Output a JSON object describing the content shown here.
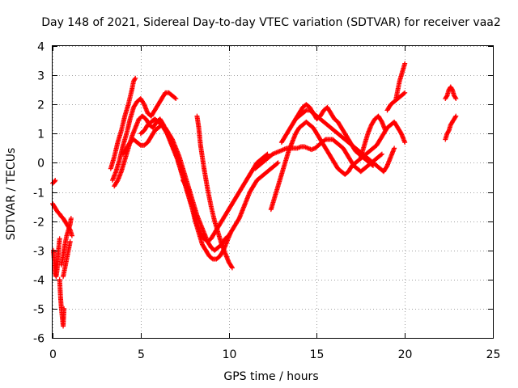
{
  "chart_data": {
    "type": "scatter",
    "title": "Day 148 of 2021, Sidereal Day-to-day VTEC variation (SDTVAR) for receiver vaa2",
    "xlabel": "GPS time / hours",
    "ylabel": "SDTVAR / TECUs",
    "xlim": [
      0,
      25
    ],
    "ylim": [
      -6,
      4
    ],
    "x_ticks": [
      0,
      5,
      10,
      15,
      20,
      25
    ],
    "x_tick_labels": [
      "0",
      "5",
      "10",
      "15",
      "20",
      "25"
    ],
    "y_ticks": [
      -6,
      -5,
      -4,
      -3,
      -2,
      -1,
      0,
      1,
      2,
      3,
      4
    ],
    "y_tick_labels": [
      "-6",
      "-5",
      "-4",
      "-3",
      "-2",
      "-1",
      "0",
      "1",
      "2",
      "3",
      "4"
    ],
    "grid": true,
    "marker": "plus",
    "color": "#ff0000",
    "series": [
      {
        "name": "s1",
        "x": [
          0.0,
          0.1,
          0.15
        ],
        "y": [
          -0.7,
          -0.65,
          -0.6
        ]
      },
      {
        "name": "s2",
        "x": [
          0.0,
          0.1,
          0.2,
          0.3,
          0.4,
          0.5,
          0.6,
          0.7,
          0.8,
          0.9,
          1.0,
          1.1
        ],
        "y": [
          -1.4,
          -1.5,
          -1.6,
          -1.7,
          -1.75,
          -1.85,
          -1.9,
          -2.0,
          -2.1,
          -2.2,
          -2.3,
          -2.5
        ]
      },
      {
        "name": "s3",
        "x": [
          0.05,
          0.1,
          0.15,
          0.2,
          0.25,
          0.3,
          0.35,
          0.4
        ],
        "y": [
          -3.0,
          -3.4,
          -3.8,
          -3.9,
          -3.7,
          -3.3,
          -2.9,
          -2.6
        ]
      },
      {
        "name": "s4",
        "x": [
          0.4,
          0.45,
          0.5,
          0.55,
          0.6,
          0.65
        ],
        "y": [
          -4.0,
          -4.6,
          -5.0,
          -5.3,
          -5.6,
          -5.0
        ]
      },
      {
        "name": "s5",
        "x": [
          0.5,
          0.6,
          0.7,
          0.8,
          0.9,
          1.0,
          1.05
        ],
        "y": [
          -3.5,
          -3.2,
          -2.8,
          -2.5,
          -2.3,
          -2.1,
          -1.9
        ]
      },
      {
        "name": "s6",
        "x": [
          0.6,
          0.7,
          0.8,
          0.9,
          1.0
        ],
        "y": [
          -3.9,
          -3.6,
          -3.3,
          -3.0,
          -2.7
        ]
      },
      {
        "name": "s7",
        "x": [
          3.3,
          3.5,
          3.7,
          3.9,
          4.1,
          4.3,
          4.5,
          4.6,
          4.7
        ],
        "y": [
          -0.2,
          0.2,
          0.7,
          1.1,
          1.6,
          2.0,
          2.5,
          2.8,
          2.9
        ]
      },
      {
        "name": "s8",
        "x": [
          3.4,
          3.6,
          3.8,
          4.0,
          4.2,
          4.4,
          4.6,
          4.8,
          5.0,
          5.2,
          5.4,
          5.6,
          5.8,
          6.0,
          6.2,
          6.4,
          6.6,
          6.8,
          7.0
        ],
        "y": [
          -0.6,
          -0.3,
          0.1,
          0.6,
          1.0,
          1.5,
          1.9,
          2.1,
          2.2,
          2.0,
          1.7,
          1.6,
          1.8,
          2.0,
          2.2,
          2.4,
          2.4,
          2.3,
          2.2
        ]
      },
      {
        "name": "s9",
        "x": [
          3.5,
          3.7,
          3.9,
          4.1,
          4.3,
          4.5,
          4.7,
          4.9,
          5.1,
          5.3,
          5.5,
          5.7,
          5.9,
          6.1,
          6.3,
          6.5,
          6.7,
          6.9,
          7.1,
          7.3,
          7.5,
          7.7,
          7.9,
          8.1,
          8.3,
          8.5,
          8.7,
          8.9,
          9.1,
          9.3,
          9.5,
          9.7,
          9.9,
          10.1
        ],
        "y": [
          -0.8,
          -0.6,
          -0.3,
          0.1,
          0.5,
          0.9,
          1.2,
          1.5,
          1.6,
          1.5,
          1.3,
          1.2,
          1.4,
          1.5,
          1.3,
          1.0,
          0.7,
          0.4,
          0.1,
          -0.3,
          -0.7,
          -1.1,
          -1.5,
          -2.0,
          -2.4,
          -2.8,
          -3.0,
          -3.2,
          -3.3,
          -3.3,
          -3.2,
          -3.0,
          -2.7,
          -2.4
        ]
      },
      {
        "name": "s10",
        "x": [
          4.0,
          4.2,
          4.4,
          4.6,
          4.8,
          5.0,
          5.2,
          5.4,
          5.6,
          5.8,
          6.0,
          6.2,
          6.4,
          6.6,
          6.8,
          7.0,
          7.2,
          7.4,
          7.6,
          7.8,
          8.0,
          8.2,
          8.4,
          8.6,
          8.8,
          9.0,
          9.2,
          9.4,
          9.6,
          9.8,
          10.0,
          10.2,
          10.4,
          10.6,
          10.8,
          11.0,
          11.2,
          11.4,
          11.6,
          11.8,
          12.0,
          12.2,
          12.4,
          12.6,
          12.8
        ],
        "y": [
          0.3,
          0.5,
          0.7,
          0.8,
          0.7,
          0.6,
          0.6,
          0.7,
          0.9,
          1.1,
          1.2,
          1.3,
          1.2,
          1.0,
          0.8,
          0.5,
          0.2,
          -0.2,
          -0.6,
          -1.0,
          -1.4,
          -1.8,
          -2.1,
          -2.4,
          -2.7,
          -2.9,
          -3.0,
          -2.9,
          -2.8,
          -2.6,
          -2.5,
          -2.3,
          -2.1,
          -1.9,
          -1.6,
          -1.3,
          -1.0,
          -0.8,
          -0.6,
          -0.5,
          -0.4,
          -0.3,
          -0.2,
          -0.1,
          0.0
        ]
      },
      {
        "name": "s11",
        "x": [
          5.0,
          5.2,
          5.4,
          5.6,
          5.8,
          6.0,
          6.2,
          6.4,
          6.6,
          6.8,
          7.0,
          7.2,
          7.4,
          7.6,
          7.8,
          8.0,
          8.2,
          8.4,
          8.6,
          8.8,
          9.0,
          9.2,
          9.4,
          9.6,
          9.8,
          10.0,
          10.2,
          10.4,
          10.6,
          10.8,
          11.0,
          11.2,
          11.4,
          11.6,
          11.8,
          12.0,
          12.2
        ],
        "y": [
          1.0,
          1.1,
          1.3,
          1.4,
          1.5,
          1.4,
          1.3,
          1.1,
          0.9,
          0.6,
          0.3,
          -0.1,
          -0.5,
          -0.9,
          -1.3,
          -1.7,
          -2.1,
          -2.4,
          -2.6,
          -2.7,
          -2.6,
          -2.4,
          -2.2,
          -2.0,
          -1.8,
          -1.6,
          -1.4,
          -1.2,
          -1.0,
          -0.8,
          -0.6,
          -0.4,
          -0.2,
          0.0,
          0.1,
          0.2,
          0.3
        ]
      },
      {
        "name": "s12",
        "x": [
          7.4,
          7.5,
          7.6,
          7.7,
          7.8
        ],
        "y": [
          -0.6,
          -0.7,
          -0.8,
          -0.9,
          -1.0
        ]
      },
      {
        "name": "s13",
        "x": [
          8.2,
          8.3,
          8.4,
          8.6,
          8.8,
          9.0,
          9.2,
          9.4,
          9.6,
          9.8,
          10.0,
          10.2
        ],
        "y": [
          1.6,
          1.2,
          0.6,
          -0.2,
          -0.9,
          -1.5,
          -2.0,
          -2.4,
          -2.8,
          -3.1,
          -3.4,
          -3.6
        ]
      },
      {
        "name": "s14",
        "x": [
          11.5,
          11.7,
          11.9,
          12.1,
          12.3,
          12.5,
          12.7,
          12.9,
          13.1,
          13.3,
          13.5,
          13.7,
          13.9,
          14.1,
          14.3,
          14.5,
          14.7,
          14.9,
          15.1,
          15.3,
          15.5,
          15.7,
          15.9,
          16.1,
          16.3,
          16.5,
          16.7,
          16.9,
          17.1,
          17.3,
          17.5,
          17.7,
          17.9,
          18.1,
          18.3,
          18.5,
          18.7
        ],
        "y": [
          -0.2,
          -0.1,
          0.0,
          0.1,
          0.2,
          0.3,
          0.35,
          0.4,
          0.45,
          0.5,
          0.5,
          0.5,
          0.5,
          0.55,
          0.55,
          0.5,
          0.45,
          0.5,
          0.6,
          0.7,
          0.8,
          0.8,
          0.8,
          0.7,
          0.6,
          0.5,
          0.3,
          0.1,
          -0.1,
          -0.2,
          -0.3,
          -0.2,
          -0.1,
          0.0,
          0.1,
          0.2,
          0.3
        ]
      },
      {
        "name": "s15",
        "x": [
          12.4,
          12.6,
          12.8,
          13.0,
          13.2,
          13.4,
          13.6,
          13.8,
          14.0,
          14.2,
          14.4,
          14.6,
          14.8,
          15.0,
          15.2,
          15.4,
          15.6,
          15.8,
          16.0,
          16.2,
          16.4,
          16.6,
          16.8,
          17.0,
          17.2,
          17.4,
          17.6,
          17.8,
          18.0,
          18.2,
          18.4,
          18.6,
          18.8,
          19.0,
          19.2,
          19.4,
          19.6,
          19.8,
          20.0
        ],
        "y": [
          -1.6,
          -1.2,
          -0.8,
          -0.4,
          0.0,
          0.4,
          0.7,
          1.0,
          1.2,
          1.3,
          1.4,
          1.3,
          1.2,
          1.0,
          0.8,
          0.6,
          0.4,
          0.2,
          0.0,
          -0.2,
          -0.3,
          -0.4,
          -0.3,
          -0.1,
          0.0,
          0.1,
          0.2,
          0.3,
          0.4,
          0.5,
          0.6,
          0.8,
          1.0,
          1.2,
          1.3,
          1.4,
          1.2,
          1.0,
          0.7
        ]
      },
      {
        "name": "s16",
        "x": [
          13.0,
          13.2,
          13.4,
          13.6,
          13.8,
          14.0,
          14.2,
          14.4,
          14.6,
          14.8,
          15.0,
          15.2,
          15.4,
          15.6,
          15.8,
          16.0,
          16.2,
          16.4,
          16.6,
          16.8,
          17.0,
          17.2,
          17.4,
          17.6,
          17.8,
          18.0,
          18.2,
          18.4,
          18.6,
          18.8,
          19.0,
          19.2,
          19.4
        ],
        "y": [
          0.7,
          0.9,
          1.1,
          1.3,
          1.5,
          1.6,
          1.7,
          1.8,
          1.8,
          1.7,
          1.6,
          1.5,
          1.4,
          1.3,
          1.2,
          1.1,
          1.0,
          0.9,
          0.8,
          0.7,
          0.6,
          0.5,
          0.4,
          0.3,
          0.2,
          0.1,
          0.0,
          -0.1,
          -0.2,
          -0.3,
          -0.1,
          0.2,
          0.5
        ]
      },
      {
        "name": "s17",
        "x": [
          13.8,
          14.0,
          14.2,
          14.4,
          14.6,
          14.8,
          15.0,
          15.2,
          15.4,
          15.6,
          15.8,
          16.0,
          16.2,
          16.4,
          16.6,
          16.8,
          17.0,
          17.2,
          17.4,
          17.6,
          17.8,
          18.0,
          18.2
        ],
        "y": [
          1.5,
          1.7,
          1.9,
          2.0,
          1.9,
          1.7,
          1.5,
          1.6,
          1.8,
          1.9,
          1.7,
          1.5,
          1.4,
          1.2,
          1.0,
          0.8,
          0.6,
          0.4,
          0.3,
          0.2,
          0.1,
          0.0,
          -0.1
        ]
      },
      {
        "name": "s18",
        "x": [
          17.5,
          17.7,
          17.9,
          18.1,
          18.3,
          18.5,
          18.7,
          18.9
        ],
        "y": [
          0.2,
          0.6,
          1.0,
          1.3,
          1.5,
          1.6,
          1.4,
          1.1
        ]
      },
      {
        "name": "s19",
        "x": [
          19.0,
          19.2,
          19.4,
          19.6,
          19.8,
          20.0
        ],
        "y": [
          1.8,
          2.0,
          2.1,
          2.2,
          2.3,
          2.4
        ]
      },
      {
        "name": "s20",
        "x": [
          19.5,
          19.6,
          19.7,
          19.8,
          19.9,
          20.0
        ],
        "y": [
          2.2,
          2.5,
          2.8,
          3.0,
          3.2,
          3.4
        ]
      },
      {
        "name": "s21",
        "x": [
          22.3,
          22.4,
          22.5,
          22.6,
          22.7,
          22.8,
          22.9
        ],
        "y": [
          2.2,
          2.3,
          2.5,
          2.6,
          2.5,
          2.3,
          2.2
        ]
      },
      {
        "name": "s22",
        "x": [
          22.3,
          22.4,
          22.5,
          22.6,
          22.7,
          22.8,
          22.9
        ],
        "y": [
          0.8,
          1.0,
          1.1,
          1.3,
          1.4,
          1.5,
          1.6
        ]
      }
    ]
  }
}
